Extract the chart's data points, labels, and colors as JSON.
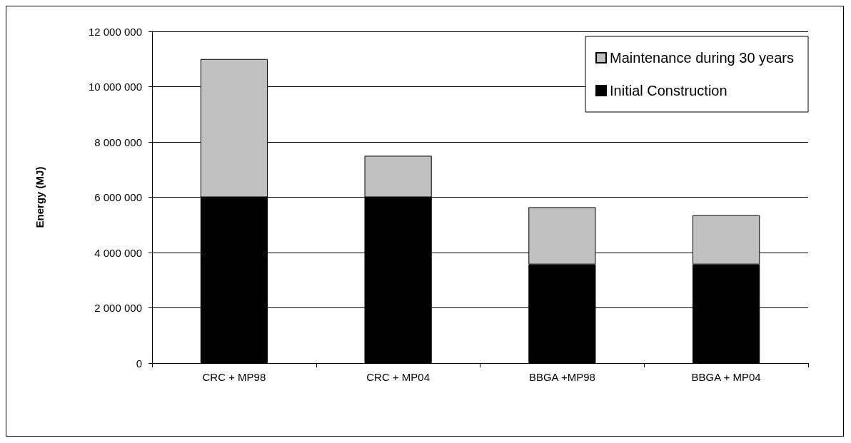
{
  "chart_data": {
    "type": "bar",
    "ylabel": "Energy (MJ)",
    "categories": [
      "CRC + MP98",
      "CRC + MP04",
      "BBGA +MP98",
      "BBGA + MP04"
    ],
    "stacked": true,
    "series": [
      {
        "name": "Initial Construction",
        "color": "#000000",
        "values": [
          6000000,
          6000000,
          3570000,
          3570000
        ]
      },
      {
        "name": "Maintenance during 30 years",
        "color": "#c0c0c0",
        "values": [
          5000000,
          1500000,
          2070000,
          1780000
        ]
      }
    ],
    "ylim": [
      0,
      12000000
    ],
    "yticks": [
      {
        "value": 0,
        "label": "0"
      },
      {
        "value": 2000000,
        "label": "2 000 000"
      },
      {
        "value": 4000000,
        "label": "4 000 000"
      },
      {
        "value": 6000000,
        "label": "6 000 000"
      },
      {
        "value": 8000000,
        "label": "8 000 000"
      },
      {
        "value": 10000000,
        "label": "10 000 000"
      },
      {
        "value": 12000000,
        "label": "12 000 000"
      }
    ],
    "grid": "y",
    "legend": "top right"
  }
}
